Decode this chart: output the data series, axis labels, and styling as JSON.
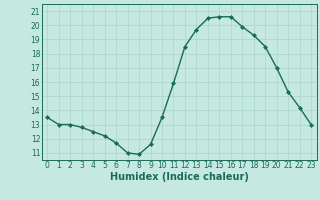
{
  "x": [
    0,
    1,
    2,
    3,
    4,
    5,
    6,
    7,
    8,
    9,
    10,
    11,
    12,
    13,
    14,
    15,
    16,
    17,
    18,
    19,
    20,
    21,
    22,
    23
  ],
  "y": [
    13.5,
    13.0,
    13.0,
    12.8,
    12.5,
    12.2,
    11.7,
    11.0,
    10.9,
    11.6,
    13.5,
    15.9,
    18.5,
    19.7,
    20.5,
    20.6,
    20.6,
    19.9,
    19.3,
    18.5,
    17.0,
    15.3,
    14.2,
    13.0
  ],
  "line_color": "#1a6b5a",
  "marker": "D",
  "marker_size": 2.0,
  "bg_color": "#c5e8e0",
  "grid_color": "#b0d8cc",
  "xlabel": "Humidex (Indice chaleur)",
  "xlim": [
    -0.5,
    23.5
  ],
  "ylim": [
    10.5,
    21.5
  ],
  "xticks": [
    0,
    1,
    2,
    3,
    4,
    5,
    6,
    7,
    8,
    9,
    10,
    11,
    12,
    13,
    14,
    15,
    16,
    17,
    18,
    19,
    20,
    21,
    22,
    23
  ],
  "yticks": [
    11,
    12,
    13,
    14,
    15,
    16,
    17,
    18,
    19,
    20,
    21
  ],
  "tick_fontsize": 5.5,
  "xlabel_fontsize": 7.0,
  "axis_color": "#1a6b5a",
  "linewidth": 1.0,
  "spine_color": "#1a6b5a"
}
